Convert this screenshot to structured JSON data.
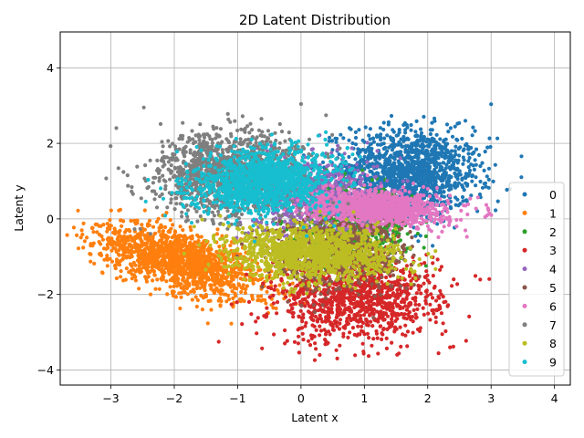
{
  "chart_data": {
    "type": "scatter",
    "title": "2D Latent Distribution",
    "xlabel": "Latent x",
    "ylabel": "Latent y",
    "xlim": [
      -3.8,
      4.25
    ],
    "ylim": [
      -4.4,
      4.95
    ],
    "xticks": [
      -3,
      -2,
      -1,
      0,
      1,
      2,
      3,
      4
    ],
    "yticks": [
      -4,
      -2,
      0,
      2,
      4
    ],
    "xtick_labels": [
      "−3",
      "−2",
      "−1",
      "0",
      "1",
      "2",
      "3",
      "4"
    ],
    "ytick_labels": [
      "−4",
      "−2",
      "0",
      "2",
      "4"
    ],
    "grid": true,
    "legend_position": "right",
    "series": [
      {
        "name": "0",
        "color": "#1f77b4",
        "cx": 1.7,
        "cy": 1.2,
        "sx": 0.55,
        "sy": 0.6,
        "rot": -0.2,
        "n": 1400
      },
      {
        "name": "1",
        "color": "#ff7f0e",
        "cx": -1.9,
        "cy": -1.1,
        "sx": 0.75,
        "sy": 0.35,
        "rot": -0.55,
        "n": 1500
      },
      {
        "name": "2",
        "color": "#2ca02c",
        "cx": 0.8,
        "cy": -0.2,
        "sx": 0.45,
        "sy": 0.5,
        "rot": 0.0,
        "n": 700
      },
      {
        "name": "3",
        "color": "#d62728",
        "cx": 0.9,
        "cy": -2.1,
        "sx": 0.65,
        "sy": 0.55,
        "rot": 0.15,
        "n": 1100
      },
      {
        "name": "4",
        "color": "#9467bd",
        "cx": 0.2,
        "cy": 0.6,
        "sx": 0.5,
        "sy": 0.55,
        "rot": 0.0,
        "n": 700
      },
      {
        "name": "5",
        "color": "#8c564b",
        "cx": 0.6,
        "cy": -0.9,
        "sx": 0.55,
        "sy": 0.5,
        "rot": 0.0,
        "n": 700
      },
      {
        "name": "6",
        "color": "#e377c2",
        "cx": 1.2,
        "cy": 0.3,
        "sx": 0.55,
        "sy": 0.22,
        "rot": -0.1,
        "n": 1100
      },
      {
        "name": "7",
        "color": "#7f7f7f",
        "cx": -1.1,
        "cy": 1.2,
        "sx": 0.6,
        "sy": 0.55,
        "rot": 0.35,
        "n": 1300
      },
      {
        "name": "8",
        "color": "#bcbd22",
        "cx": 0.2,
        "cy": -0.9,
        "sx": 0.65,
        "sy": 0.35,
        "rot": -0.1,
        "n": 1300
      },
      {
        "name": "9",
        "color": "#17becf",
        "cx": -0.6,
        "cy": 1.0,
        "sx": 0.55,
        "sy": 0.4,
        "rot": 0.3,
        "n": 1300
      }
    ]
  }
}
